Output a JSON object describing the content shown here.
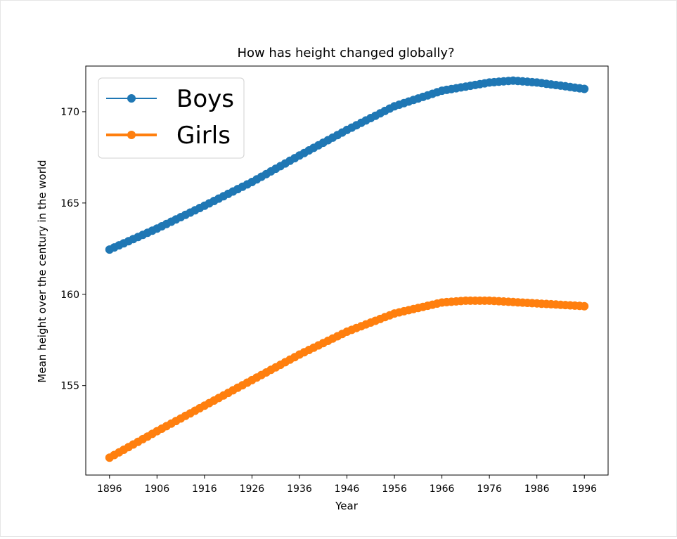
{
  "chart_data": {
    "type": "line",
    "title": "How has height changed globally?",
    "xlabel": "Year",
    "ylabel": "Mean height over the century in the world",
    "xlim": [
      1891,
      2001
    ],
    "ylim": [
      150.1,
      172.5
    ],
    "xticks": [
      1896,
      1906,
      1916,
      1926,
      1936,
      1946,
      1956,
      1966,
      1976,
      1986,
      1996
    ],
    "yticks": [
      155,
      160,
      165,
      170
    ],
    "xtick_labels": [
      "1896",
      "1906",
      "1916",
      "1926",
      "1936",
      "1946",
      "1956",
      "1966",
      "1976",
      "1986",
      "1996"
    ],
    "ytick_labels": [
      "155",
      "160",
      "165",
      "170"
    ],
    "legend_position": "upper-left",
    "grid": false,
    "series": [
      {
        "name": "Boys",
        "color": "#1f77b4",
        "line_width": "thin",
        "marker": "circle",
        "x_start": 1896,
        "x_end": 1996,
        "keypoints": [
          [
            1896,
            162.45
          ],
          [
            1906,
            163.6
          ],
          [
            1916,
            164.85
          ],
          [
            1926,
            166.15
          ],
          [
            1936,
            167.6
          ],
          [
            1946,
            169.0
          ],
          [
            1956,
            170.3
          ],
          [
            1966,
            171.15
          ],
          [
            1976,
            171.6
          ],
          [
            1981,
            171.7
          ],
          [
            1986,
            171.6
          ],
          [
            1996,
            171.25
          ]
        ]
      },
      {
        "name": "Girls",
        "color": "#ff7f0e",
        "line_width": "thick",
        "marker": "circle",
        "x_start": 1896,
        "x_end": 1996,
        "keypoints": [
          [
            1896,
            151.05
          ],
          [
            1906,
            152.5
          ],
          [
            1916,
            153.9
          ],
          [
            1926,
            155.3
          ],
          [
            1936,
            156.7
          ],
          [
            1946,
            157.95
          ],
          [
            1956,
            158.95
          ],
          [
            1966,
            159.55
          ],
          [
            1971,
            159.65
          ],
          [
            1976,
            159.65
          ],
          [
            1986,
            159.5
          ],
          [
            1996,
            159.35
          ]
        ]
      }
    ]
  }
}
